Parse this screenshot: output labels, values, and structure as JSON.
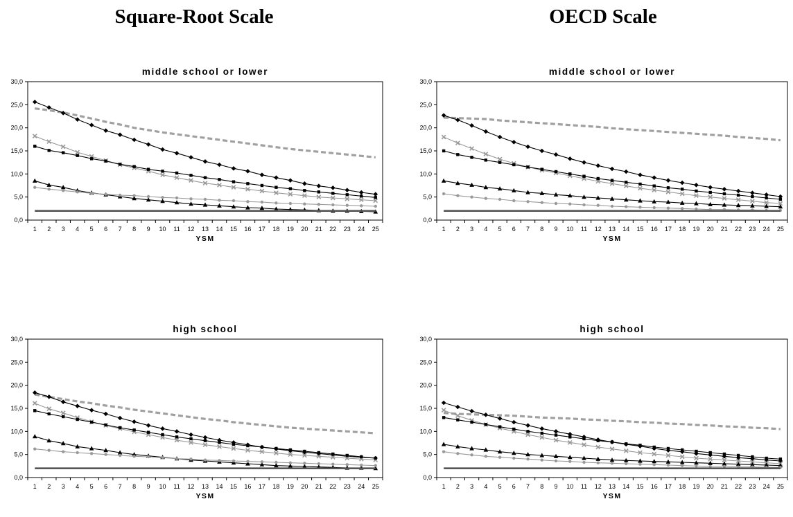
{
  "headings": {
    "left": "Square-Root Scale",
    "right": "OECD Scale"
  },
  "chart_data": [
    {
      "type": "line",
      "title": "middle school or lower",
      "xlabel": "YSM",
      "ylabel": "",
      "x": [
        1,
        2,
        3,
        4,
        5,
        6,
        7,
        8,
        9,
        10,
        11,
        12,
        13,
        14,
        15,
        16,
        17,
        18,
        19,
        20,
        21,
        22,
        23,
        24,
        25
      ],
      "ylim": [
        0,
        30
      ],
      "yticks": [
        "0,0",
        "5,0",
        "10,0",
        "15,0",
        "20,0",
        "25,0",
        "30,0"
      ],
      "grid": false,
      "legend": "none",
      "series": [
        {
          "style": "dashed-gray",
          "values": [
            24.2,
            23.8,
            23.3,
            22.7,
            22.0,
            21.3,
            20.7,
            20.0,
            19.5,
            19.0,
            18.6,
            18.2,
            17.8,
            17.4,
            17.0,
            16.6,
            16.2,
            15.8,
            15.4,
            15.1,
            14.8,
            14.5,
            14.2,
            13.9,
            13.6
          ]
        },
        {
          "style": "diamond-black",
          "values": [
            25.6,
            24.4,
            23.2,
            21.8,
            20.6,
            19.4,
            18.5,
            17.4,
            16.4,
            15.3,
            14.5,
            13.6,
            12.7,
            12.0,
            11.2,
            10.6,
            9.8,
            9.2,
            8.6,
            7.9,
            7.4,
            7.0,
            6.5,
            6.0,
            5.6
          ]
        },
        {
          "style": "x-gray",
          "values": [
            18.2,
            17.0,
            15.9,
            14.7,
            13.8,
            12.9,
            12.0,
            11.3,
            10.6,
            9.8,
            9.2,
            8.6,
            8.0,
            7.6,
            7.1,
            6.7,
            6.3,
            5.9,
            5.6,
            5.3,
            5.0,
            4.8,
            4.6,
            4.4,
            4.2
          ]
        },
        {
          "style": "square-black",
          "values": [
            16.0,
            15.1,
            14.6,
            14.0,
            13.3,
            12.8,
            12.1,
            11.6,
            11.0,
            10.6,
            10.2,
            9.7,
            9.2,
            8.8,
            8.3,
            7.9,
            7.5,
            7.1,
            6.8,
            6.4,
            6.1,
            5.8,
            5.5,
            5.2,
            4.9
          ]
        },
        {
          "style": "triangle-black",
          "values": [
            8.5,
            7.6,
            7.1,
            6.4,
            5.9,
            5.5,
            5.1,
            4.7,
            4.4,
            4.1,
            3.8,
            3.5,
            3.3,
            3.1,
            2.9,
            2.7,
            2.6,
            2.4,
            2.3,
            2.2,
            2.1,
            2.0,
            2.0,
            1.9,
            1.8
          ]
        },
        {
          "style": "dot-gray",
          "values": [
            7.1,
            6.7,
            6.4,
            6.1,
            5.8,
            5.6,
            5.4,
            5.3,
            5.1,
            4.9,
            4.8,
            4.6,
            4.5,
            4.3,
            4.2,
            4.0,
            3.9,
            3.7,
            3.6,
            3.5,
            3.4,
            3.3,
            3.2,
            3.1,
            3.0
          ]
        },
        {
          "style": "solid-dark",
          "values": [
            2.0,
            2.0,
            2.0,
            2.0,
            2.0,
            2.0,
            2.0,
            2.0,
            2.0,
            2.0,
            2.0,
            2.0,
            2.0,
            2.0,
            2.0,
            2.0,
            2.0,
            2.0,
            2.0,
            2.0,
            2.0,
            2.0,
            2.0,
            2.0,
            2.0
          ]
        }
      ]
    },
    {
      "type": "line",
      "title": "middle school or lower",
      "xlabel": "YSM",
      "ylabel": "",
      "x": [
        1,
        2,
        3,
        4,
        5,
        6,
        7,
        8,
        9,
        10,
        11,
        12,
        13,
        14,
        15,
        16,
        17,
        18,
        19,
        20,
        21,
        22,
        23,
        24,
        25
      ],
      "ylim": [
        0,
        30
      ],
      "yticks": [
        "0,0",
        "5,0",
        "10,0",
        "15,0",
        "20,0",
        "25,0",
        "30,0"
      ],
      "grid": false,
      "legend": "none",
      "series": [
        {
          "style": "dashed-gray",
          "values": [
            22.2,
            22.1,
            22.0,
            21.9,
            21.6,
            21.4,
            21.2,
            21.0,
            20.8,
            20.6,
            20.4,
            20.2,
            19.9,
            19.7,
            19.5,
            19.3,
            19.1,
            18.9,
            18.7,
            18.5,
            18.3,
            18.0,
            17.8,
            17.6,
            17.3
          ]
        },
        {
          "style": "diamond-black",
          "values": [
            22.7,
            21.7,
            20.5,
            19.2,
            18.0,
            16.9,
            15.9,
            15.0,
            14.2,
            13.3,
            12.5,
            11.8,
            11.1,
            10.5,
            9.8,
            9.2,
            8.6,
            8.1,
            7.6,
            7.1,
            6.7,
            6.3,
            5.9,
            5.5,
            5.1
          ]
        },
        {
          "style": "x-gray",
          "values": [
            18.0,
            16.7,
            15.5,
            14.3,
            13.2,
            12.3,
            11.5,
            10.8,
            10.2,
            9.6,
            9.0,
            8.4,
            7.9,
            7.4,
            6.9,
            6.5,
            6.1,
            5.7,
            5.3,
            5.0,
            4.7,
            4.4,
            4.1,
            3.8,
            3.6
          ]
        },
        {
          "style": "square-black",
          "values": [
            15.0,
            14.2,
            13.6,
            13.0,
            12.5,
            12.0,
            11.5,
            11.0,
            10.5,
            10.0,
            9.5,
            9.0,
            8.6,
            8.2,
            7.8,
            7.4,
            7.0,
            6.7,
            6.3,
            6.0,
            5.7,
            5.4,
            5.1,
            4.8,
            4.5
          ]
        },
        {
          "style": "triangle-black",
          "values": [
            8.5,
            8.0,
            7.6,
            7.1,
            6.8,
            6.4,
            6.0,
            5.8,
            5.5,
            5.3,
            5.0,
            4.8,
            4.6,
            4.4,
            4.2,
            4.0,
            3.9,
            3.7,
            3.6,
            3.4,
            3.3,
            3.2,
            3.1,
            3.0,
            2.9
          ]
        },
        {
          "style": "dot-gray",
          "values": [
            5.7,
            5.3,
            5.0,
            4.7,
            4.5,
            4.2,
            4.0,
            3.8,
            3.6,
            3.5,
            3.3,
            3.2,
            3.0,
            2.9,
            2.8,
            2.7,
            2.6,
            2.5,
            2.4,
            2.3,
            2.3,
            2.2,
            2.2,
            2.1,
            2.1
          ]
        },
        {
          "style": "solid-dark",
          "values": [
            2.0,
            2.0,
            2.0,
            2.0,
            2.0,
            2.0,
            2.0,
            2.0,
            2.0,
            2.0,
            2.0,
            2.0,
            2.0,
            2.0,
            2.0,
            2.0,
            2.0,
            2.0,
            2.0,
            2.0,
            2.0,
            2.0,
            2.0,
            2.0,
            2.0
          ]
        }
      ]
    },
    {
      "type": "line",
      "title": "high school",
      "xlabel": "YSM",
      "ylabel": "",
      "x": [
        1,
        2,
        3,
        4,
        5,
        6,
        7,
        8,
        9,
        10,
        11,
        12,
        13,
        14,
        15,
        16,
        17,
        18,
        19,
        20,
        21,
        22,
        23,
        24,
        25
      ],
      "ylim": [
        0,
        30
      ],
      "yticks": [
        "0,0",
        "5,0",
        "10,0",
        "15,0",
        "20,0",
        "25,0",
        "30,0"
      ],
      "grid": false,
      "legend": "none",
      "series": [
        {
          "style": "dashed-gray",
          "values": [
            18.0,
            17.5,
            17.0,
            16.5,
            16.1,
            15.6,
            15.2,
            14.7,
            14.3,
            13.9,
            13.5,
            13.1,
            12.7,
            12.4,
            12.0,
            11.7,
            11.4,
            11.1,
            10.8,
            10.6,
            10.4,
            10.2,
            10.0,
            9.8,
            9.6
          ]
        },
        {
          "style": "diamond-black",
          "values": [
            18.4,
            17.5,
            16.4,
            15.5,
            14.6,
            13.8,
            12.9,
            12.1,
            11.3,
            10.6,
            10.0,
            9.3,
            8.7,
            8.1,
            7.6,
            7.1,
            6.6,
            6.2,
            5.8,
            5.5,
            5.2,
            4.9,
            4.6,
            4.4,
            4.2
          ]
        },
        {
          "style": "x-gray",
          "values": [
            16.1,
            14.9,
            14.0,
            13.0,
            12.1,
            11.3,
            10.6,
            9.9,
            9.3,
            8.7,
            8.1,
            7.6,
            7.1,
            6.7,
            6.3,
            5.9,
            5.6,
            5.3,
            5.0,
            4.8,
            4.6,
            4.4,
            4.2,
            4.0,
            3.8
          ]
        },
        {
          "style": "square-black",
          "values": [
            14.5,
            13.8,
            13.2,
            12.6,
            12.0,
            11.4,
            10.8,
            10.3,
            9.8,
            9.3,
            8.8,
            8.4,
            8.0,
            7.6,
            7.2,
            6.9,
            6.6,
            6.3,
            6.0,
            5.7,
            5.4,
            5.1,
            4.8,
            4.5,
            4.2
          ]
        },
        {
          "style": "triangle-black",
          "values": [
            8.9,
            8.0,
            7.4,
            6.7,
            6.3,
            5.9,
            5.4,
            5.0,
            4.7,
            4.4,
            4.1,
            3.8,
            3.6,
            3.4,
            3.2,
            3.0,
            2.8,
            2.6,
            2.5,
            2.4,
            2.3,
            2.2,
            2.1,
            2.1,
            2.0
          ]
        },
        {
          "style": "dot-gray",
          "values": [
            6.2,
            5.9,
            5.6,
            5.4,
            5.2,
            5.0,
            4.8,
            4.6,
            4.5,
            4.3,
            4.1,
            4.0,
            3.8,
            3.7,
            3.6,
            3.5,
            3.4,
            3.3,
            3.2,
            3.1,
            3.0,
            2.9,
            2.8,
            2.7,
            2.6
          ]
        },
        {
          "style": "solid-dark",
          "values": [
            2.0,
            2.0,
            2.0,
            2.0,
            2.0,
            2.0,
            2.0,
            2.0,
            2.0,
            2.0,
            2.0,
            2.0,
            2.0,
            2.0,
            2.0,
            2.0,
            2.0,
            2.0,
            2.0,
            2.0,
            2.0,
            2.0,
            2.0,
            2.0,
            2.0
          ]
        }
      ]
    },
    {
      "type": "line",
      "title": "high school",
      "xlabel": "YSM",
      "ylabel": "",
      "x": [
        1,
        2,
        3,
        4,
        5,
        6,
        7,
        8,
        9,
        10,
        11,
        12,
        13,
        14,
        15,
        16,
        17,
        18,
        19,
        20,
        21,
        22,
        23,
        24,
        25
      ],
      "ylim": [
        0,
        30
      ],
      "yticks": [
        "0,0",
        "5,0",
        "10,0",
        "15,0",
        "20,0",
        "25,0",
        "30,0"
      ],
      "grid": false,
      "legend": "none",
      "series": [
        {
          "style": "dashed-gray",
          "values": [
            14.0,
            13.8,
            13.7,
            13.6,
            13.5,
            13.4,
            13.2,
            13.0,
            12.9,
            12.8,
            12.6,
            12.5,
            12.3,
            12.2,
            12.0,
            11.9,
            11.7,
            11.6,
            11.4,
            11.3,
            11.1,
            11.0,
            10.8,
            10.7,
            10.5
          ]
        },
        {
          "style": "diamond-black",
          "values": [
            16.2,
            15.3,
            14.4,
            13.6,
            12.8,
            12.0,
            11.3,
            10.6,
            10.0,
            9.4,
            8.8,
            8.2,
            7.7,
            7.2,
            6.8,
            6.3,
            5.9,
            5.6,
            5.2,
            4.9,
            4.6,
            4.3,
            4.1,
            3.8,
            3.6
          ]
        },
        {
          "style": "x-gray",
          "values": [
            14.6,
            13.4,
            12.4,
            11.5,
            10.7,
            10.0,
            9.3,
            8.7,
            8.1,
            7.6,
            7.1,
            6.6,
            6.2,
            5.8,
            5.4,
            5.1,
            4.8,
            4.5,
            4.2,
            4.0,
            3.8,
            3.6,
            3.4,
            3.2,
            3.0
          ]
        },
        {
          "style": "square-black",
          "values": [
            13.0,
            12.5,
            12.0,
            11.5,
            11.0,
            10.5,
            10.0,
            9.6,
            9.2,
            8.8,
            8.4,
            8.0,
            7.7,
            7.3,
            7.0,
            6.6,
            6.3,
            6.0,
            5.7,
            5.4,
            5.1,
            4.8,
            4.5,
            4.2,
            4.0
          ]
        },
        {
          "style": "triangle-black",
          "values": [
            7.2,
            6.7,
            6.3,
            6.0,
            5.6,
            5.3,
            5.0,
            4.8,
            4.6,
            4.4,
            4.2,
            4.0,
            3.8,
            3.7,
            3.6,
            3.5,
            3.4,
            3.3,
            3.2,
            3.1,
            3.0,
            2.9,
            2.8,
            2.7,
            2.6
          ]
        },
        {
          "style": "dot-gray",
          "values": [
            5.6,
            5.2,
            4.9,
            4.6,
            4.4,
            4.2,
            4.0,
            3.8,
            3.6,
            3.5,
            3.3,
            3.2,
            3.1,
            3.0,
            2.9,
            2.8,
            2.7,
            2.6,
            2.5,
            2.4,
            2.4,
            2.3,
            2.3,
            2.2,
            2.2
          ]
        },
        {
          "style": "solid-dark",
          "values": [
            2.0,
            2.0,
            2.0,
            2.0,
            2.0,
            2.0,
            2.0,
            2.0,
            2.0,
            2.0,
            2.0,
            2.0,
            2.0,
            2.0,
            2.0,
            2.0,
            2.0,
            2.0,
            2.0,
            2.0,
            2.0,
            2.0,
            2.0,
            2.0,
            2.0
          ]
        }
      ]
    }
  ],
  "colors": {
    "black": "#000000",
    "gray": "#999999",
    "dashed": "#a0a0a0",
    "baseline": "#555555"
  }
}
